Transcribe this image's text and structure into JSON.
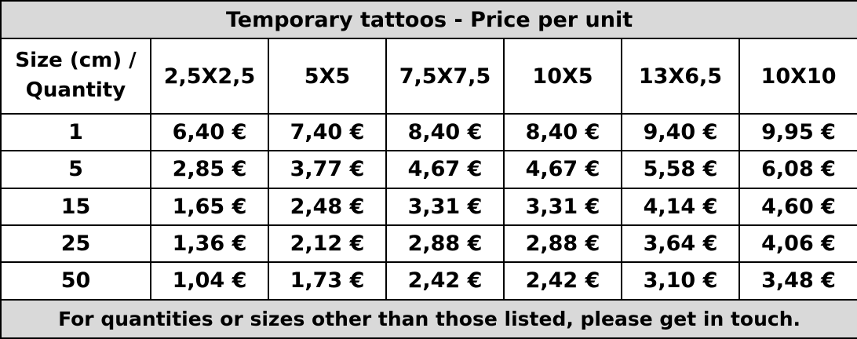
{
  "title": "Temporary tattoos - Price per unit",
  "header": {
    "corner_line1": "Size (cm) /",
    "corner_line2": "Quantity",
    "sizes": [
      "2,5X2,5",
      "5X5",
      "7,5X7,5",
      "10X5",
      "13X6,5",
      "10X10"
    ]
  },
  "rows": [
    {
      "quantity": "1",
      "prices": [
        "6,40 €",
        "7,40 €",
        "8,40 €",
        "8,40 €",
        "9,40 €",
        "9,95 €"
      ]
    },
    {
      "quantity": "5",
      "prices": [
        "2,85 €",
        "3,77 €",
        "4,67 €",
        "4,67 €",
        "5,58 €",
        "6,08 €"
      ]
    },
    {
      "quantity": "15",
      "prices": [
        "1,65 €",
        "2,48 €",
        "3,31 €",
        "3,31 €",
        "4,14 €",
        "4,60 €"
      ]
    },
    {
      "quantity": "25",
      "prices": [
        "1,36 €",
        "2,12 €",
        "2,88 €",
        "2,88 €",
        "3,64 €",
        "4,06 €"
      ]
    },
    {
      "quantity": "50",
      "prices": [
        "1,04 €",
        "1,73 €",
        "2,42 €",
        "2,42 €",
        "3,10 €",
        "3,48 €"
      ]
    }
  ],
  "footer": "For quantities or sizes other than those listed, please get in touch.",
  "colors": {
    "title_background": "#d9d9d9",
    "footer_background": "#d9d9d9",
    "border": "#000000"
  }
}
